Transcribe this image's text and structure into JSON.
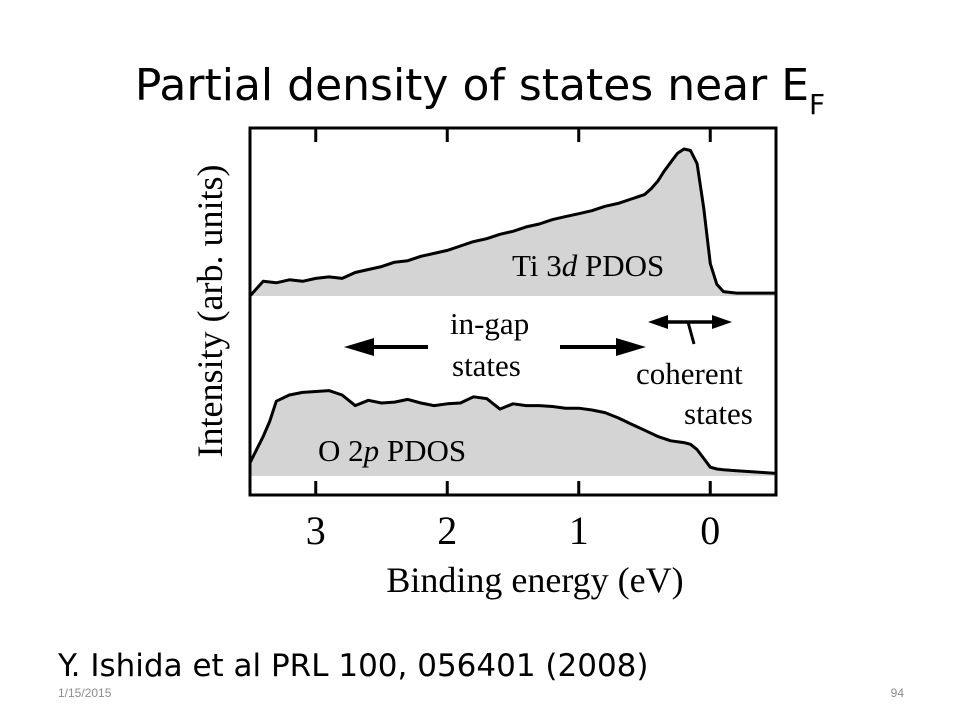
{
  "slide": {
    "title_main": "Partial density of states near E",
    "title_sub": "F",
    "citation": "Y. Ishida et al PRL 100, 056401 (2008)",
    "date": "1/15/2015",
    "page_number": "94"
  },
  "colors": {
    "fill": "#d4d4d4",
    "line": "#000000",
    "background": "#ffffff",
    "footer_text": "#8c8c8c"
  },
  "chart_data": {
    "type": "area",
    "title": "",
    "xlabel": "Binding energy (eV)",
    "ylabel": "Intensity (arb. units)",
    "xlim": [
      3.5,
      -0.5
    ],
    "x_reversed": true,
    "x_ticks": [
      3,
      2,
      1,
      0
    ],
    "x_tick_labels": [
      "3",
      "2",
      "1",
      "0"
    ],
    "grid": false,
    "series": [
      {
        "name": "Ti 3d PDOS",
        "x": [
          3.5,
          3.4,
          3.3,
          3.2,
          3.1,
          3.0,
          2.9,
          2.8,
          2.7,
          2.6,
          2.5,
          2.4,
          2.3,
          2.2,
          2.1,
          2.0,
          1.9,
          1.8,
          1.7,
          1.6,
          1.5,
          1.4,
          1.3,
          1.2,
          1.1,
          1.0,
          0.9,
          0.8,
          0.7,
          0.6,
          0.5,
          0.45,
          0.4,
          0.35,
          0.3,
          0.25,
          0.2,
          0.15,
          0.1,
          0.05,
          0.0,
          -0.05,
          -0.1,
          -0.2,
          -0.3,
          -0.4,
          -0.5
        ],
        "values": [
          0.0,
          0.1,
          0.09,
          0.11,
          0.1,
          0.12,
          0.13,
          0.12,
          0.16,
          0.18,
          0.2,
          0.23,
          0.24,
          0.27,
          0.29,
          0.31,
          0.34,
          0.37,
          0.39,
          0.42,
          0.44,
          0.47,
          0.49,
          0.52,
          0.54,
          0.56,
          0.58,
          0.61,
          0.63,
          0.66,
          0.69,
          0.73,
          0.78,
          0.85,
          0.91,
          0.97,
          1.0,
          0.99,
          0.9,
          0.6,
          0.22,
          0.08,
          0.03,
          0.02,
          0.02,
          0.02,
          0.02
        ]
      },
      {
        "name": "O 2p PDOS",
        "x": [
          3.5,
          3.45,
          3.4,
          3.35,
          3.3,
          3.2,
          3.1,
          3.0,
          2.9,
          2.8,
          2.7,
          2.6,
          2.5,
          2.4,
          2.3,
          2.2,
          2.1,
          2.0,
          1.9,
          1.8,
          1.7,
          1.6,
          1.5,
          1.4,
          1.3,
          1.2,
          1.1,
          1.0,
          0.9,
          0.8,
          0.7,
          0.6,
          0.5,
          0.4,
          0.3,
          0.2,
          0.15,
          0.1,
          0.05,
          0.0,
          -0.05,
          -0.1,
          -0.2,
          -0.3,
          -0.4,
          -0.5
        ],
        "values": [
          0.15,
          0.3,
          0.45,
          0.62,
          0.85,
          0.92,
          0.95,
          0.96,
          0.97,
          0.92,
          0.8,
          0.86,
          0.83,
          0.84,
          0.87,
          0.83,
          0.8,
          0.82,
          0.83,
          0.9,
          0.88,
          0.76,
          0.82,
          0.8,
          0.8,
          0.79,
          0.77,
          0.77,
          0.75,
          0.72,
          0.66,
          0.59,
          0.52,
          0.45,
          0.4,
          0.38,
          0.36,
          0.3,
          0.2,
          0.1,
          0.08,
          0.07,
          0.06,
          0.05,
          0.04,
          0.03
        ]
      }
    ],
    "annotations": {
      "ti_label_prefix": "Ti 3",
      "ti_label_italic": "d",
      "ti_label_suffix": " PDOS",
      "o_label_prefix": "O 2",
      "o_label_italic": "p",
      "o_label_suffix": " PDOS",
      "ingap_line1": "in-gap",
      "ingap_line2": "states",
      "coherent_line1": "coherent",
      "coherent_line2": "states"
    }
  }
}
